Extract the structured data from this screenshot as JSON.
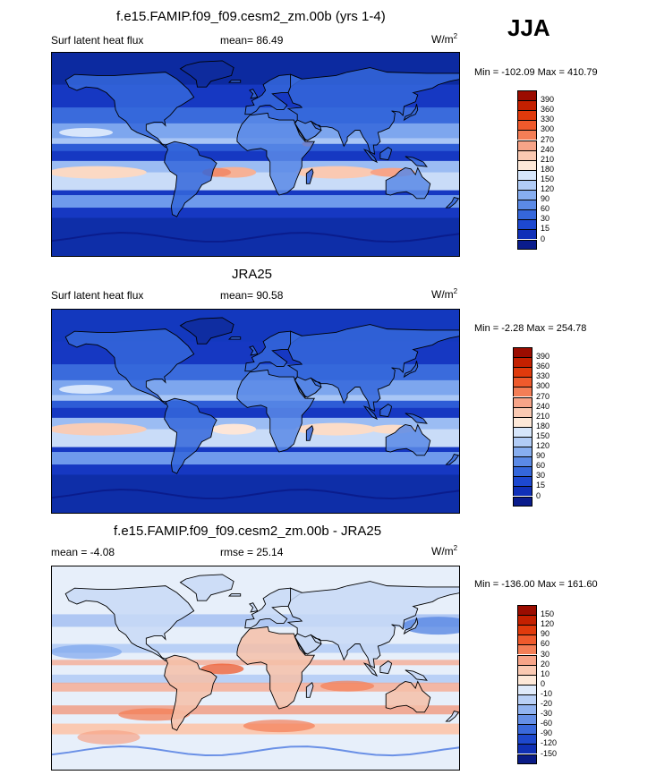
{
  "season": "JJA",
  "units_base": "W/m",
  "units_exp": "2",
  "panels": [
    {
      "title": "f.e15.FAMIP.f09_f09.cesm2_zm.00b (yrs 1-4)",
      "left_label": "Surf latent heat flux",
      "stat_label": "mean=",
      "stat_value": "86.49",
      "minmax": "Min = -102.09 Max = 410.79",
      "field_type": "model-latent-heat"
    },
    {
      "title": "JRA25",
      "left_label": "Surf latent heat flux",
      "stat_label": "mean=",
      "stat_value": "90.58",
      "minmax": "Min =  -2.28 Max = 254.78",
      "field_type": "obs-latent-heat"
    },
    {
      "title": "f.e15.FAMIP.f09_f09.cesm2_zm.00b - JRA25",
      "left_label": "mean =  -4.08",
      "stat_label": "rmse =",
      "stat_value": "25.14",
      "minmax": "Min = -136.00 Max = 161.60",
      "field_type": "difference"
    }
  ],
  "colorbar_abs": {
    "levels": [
      "390",
      "360",
      "330",
      "300",
      "270",
      "240",
      "210",
      "180",
      "150",
      "120",
      "90",
      "60",
      "30",
      "15",
      "0"
    ],
    "colors": [
      "#9b0c00",
      "#c42000",
      "#e03a0c",
      "#ef5a2c",
      "#f47e56",
      "#f7a488",
      "#fac9b2",
      "#fde8d8",
      "#d6e6fb",
      "#b1ccf6",
      "#87aef0",
      "#5b8ae6",
      "#3567db",
      "#1d48d0",
      "#1030b8",
      "#0a1c8c"
    ]
  },
  "colorbar_diff": {
    "levels": [
      "150",
      "120",
      "90",
      "60",
      "30",
      "20",
      "10",
      "0",
      "-10",
      "-20",
      "-30",
      "-60",
      "-90",
      "-120",
      "-150"
    ],
    "colors": [
      "#9b0c00",
      "#c42000",
      "#e03a0c",
      "#ef5a2c",
      "#f47e56",
      "#f7a488",
      "#fac9b2",
      "#fde8d8",
      "#dfeafa",
      "#b9d0f6",
      "#91b3f0",
      "#658fe6",
      "#3a69db",
      "#1e48cc",
      "#1030b4",
      "#0a1c86"
    ]
  }
}
